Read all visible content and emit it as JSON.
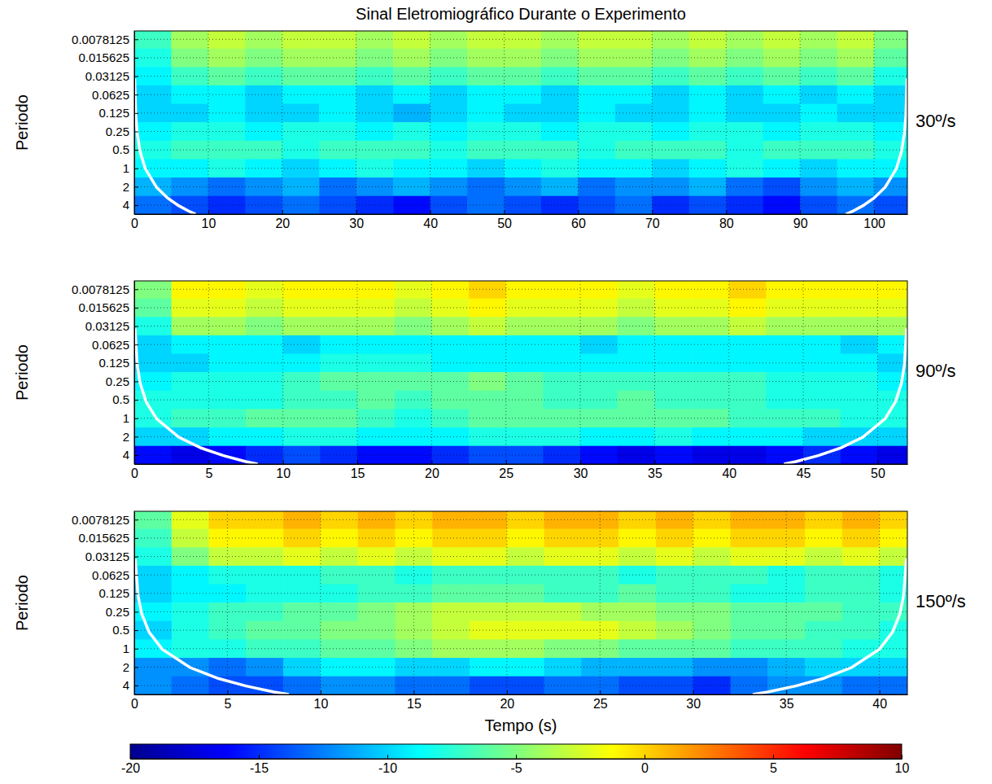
{
  "title": "Sinal Eletromiográfico Durante o Experimento",
  "colorbar": {
    "range": [
      -20,
      10
    ],
    "ticks": [
      -20,
      -15,
      -10,
      -5,
      0,
      5,
      10
    ]
  },
  "chart_data": [
    {
      "type": "heatmap",
      "label": "30º/s",
      "ylabel": "Periodo",
      "log": "y",
      "grid": true,
      "xlim": [
        0,
        104.5
      ],
      "xticks": [
        0,
        10,
        20,
        30,
        40,
        50,
        60,
        70,
        80,
        90,
        100
      ],
      "ylim": [
        0.0057,
        5.6
      ],
      "yticks": [
        0.0078125,
        0.015625,
        0.03125,
        0.0625,
        0.125,
        0.25,
        0.5,
        1,
        2,
        4
      ],
      "x": [
        2.5,
        7.5,
        12.5,
        17.5,
        22.5,
        27.5,
        32.5,
        37.5,
        42.5,
        47.5,
        52.5,
        57.5,
        62.5,
        67.5,
        72.5,
        77.5,
        82.5,
        87.5,
        92.5,
        97.5,
        102.5
      ],
      "y": [
        0.0078125,
        0.015625,
        0.03125,
        0.0625,
        0.125,
        0.25,
        0.5,
        1,
        2,
        4
      ],
      "cells": [
        [
          -7,
          -4,
          -3,
          -4,
          -3,
          -3,
          -4,
          -3,
          -4,
          -3,
          -3,
          -4,
          -3,
          -3,
          -4,
          -3,
          -4,
          -3,
          -4,
          -3,
          -5
        ],
        [
          -8,
          -5,
          -4,
          -5,
          -4,
          -4,
          -5,
          -4,
          -5,
          -4,
          -4,
          -5,
          -4,
          -4,
          -5,
          -4,
          -5,
          -4,
          -5,
          -4,
          -6
        ],
        [
          -9,
          -7,
          -6,
          -7,
          -6,
          -6,
          -7,
          -6,
          -7,
          -6,
          -6,
          -7,
          -6,
          -6,
          -7,
          -6,
          -7,
          -6,
          -7,
          -6,
          -8
        ],
        [
          -10,
          -9,
          -9,
          -10,
          -9,
          -9,
          -10,
          -9,
          -10,
          -9,
          -9,
          -10,
          -9,
          -9,
          -10,
          -9,
          -10,
          -9,
          -10,
          -9,
          -10
        ],
        [
          -10,
          -10,
          -9,
          -10,
          -10,
          -9,
          -10,
          -11,
          -10,
          -9,
          -10,
          -10,
          -9,
          -10,
          -10,
          -9,
          -10,
          -10,
          -9,
          -10,
          -10
        ],
        [
          -9,
          -8,
          -8,
          -9,
          -8,
          -8,
          -9,
          -8,
          -9,
          -8,
          -8,
          -9,
          -8,
          -8,
          -9,
          -8,
          -8,
          -9,
          -8,
          -8,
          -9
        ],
        [
          -8,
          -7,
          -7,
          -7,
          -8,
          -7,
          -7,
          -7,
          -8,
          -7,
          -7,
          -7,
          -8,
          -7,
          -7,
          -7,
          -8,
          -7,
          -7,
          -7,
          -8
        ],
        [
          -9,
          -9,
          -8,
          -9,
          -10,
          -9,
          -8,
          -9,
          -9,
          -10,
          -9,
          -8,
          -9,
          -9,
          -10,
          -9,
          -8,
          -9,
          -10,
          -9,
          -9
        ],
        [
          -11,
          -12,
          -13,
          -12,
          -11,
          -13,
          -12,
          -11,
          -12,
          -13,
          -12,
          -11,
          -13,
          -12,
          -12,
          -11,
          -13,
          -14,
          -12,
          -11,
          -12
        ],
        [
          -13,
          -14,
          -15,
          -14,
          -13,
          -14,
          -15,
          -16,
          -14,
          -13,
          -14,
          -15,
          -14,
          -13,
          -15,
          -14,
          -15,
          -16,
          -14,
          -13,
          -14
        ]
      ],
      "coi": {
        "color": "#ffffff",
        "x": [
          0.05,
          0.2,
          0.4,
          0.8,
          1.5,
          3,
          4.5,
          6,
          7.5,
          8.3,
          null,
          96.2,
          97,
          98.5,
          100,
          101.5,
          103,
          103.7,
          104.1,
          104.3,
          104.45
        ],
        "y": [
          0.034,
          0.136,
          0.27,
          0.54,
          1.02,
          2.04,
          3.06,
          4.08,
          5.1,
          5.6,
          null,
          5.6,
          5.1,
          4.08,
          3.06,
          2.04,
          1.02,
          0.54,
          0.27,
          0.136,
          0.034
        ]
      }
    },
    {
      "type": "heatmap",
      "label": "90º/s",
      "ylabel": "Periodo",
      "log": "y",
      "grid": true,
      "xlim": [
        0,
        52
      ],
      "xticks": [
        0,
        5,
        10,
        15,
        20,
        25,
        30,
        35,
        40,
        45,
        50
      ],
      "ylim": [
        0.0057,
        5.6
      ],
      "yticks": [
        0.0078125,
        0.015625,
        0.03125,
        0.0625,
        0.125,
        0.25,
        0.5,
        1,
        2,
        4
      ],
      "x": [
        1.25,
        3.75,
        6.25,
        8.75,
        11.25,
        13.75,
        16.25,
        18.75,
        21.25,
        23.75,
        26.25,
        28.75,
        31.25,
        33.75,
        36.25,
        38.75,
        41.25,
        43.75,
        46.25,
        48.75,
        51.25
      ],
      "y": [
        0.0078125,
        0.015625,
        0.03125,
        0.0625,
        0.125,
        0.25,
        0.5,
        1,
        2,
        4
      ],
      "cells": [
        [
          -5,
          -1,
          -1,
          -2,
          -1,
          -1,
          -1,
          -2,
          -1,
          0,
          -1,
          -1,
          -1,
          -2,
          -1,
          -1,
          0,
          -1,
          -1,
          -1,
          -1
        ],
        [
          -6,
          -2,
          -2,
          -3,
          -2,
          -2,
          -2,
          -3,
          -2,
          -1,
          -2,
          -2,
          -2,
          -3,
          -2,
          -2,
          -1,
          -2,
          -2,
          -2,
          -2
        ],
        [
          -8,
          -4,
          -4,
          -5,
          -4,
          -4,
          -4,
          -5,
          -4,
          -3,
          -4,
          -4,
          -4,
          -5,
          -4,
          -4,
          -3,
          -4,
          -4,
          -4,
          -4
        ],
        [
          -10,
          -9,
          -9,
          -9,
          -10,
          -9,
          -9,
          -9,
          -9,
          -9,
          -9,
          -9,
          -10,
          -9,
          -9,
          -9,
          -9,
          -9,
          -9,
          -10,
          -9
        ],
        [
          -10,
          -10,
          -9,
          -9,
          -9,
          -8,
          -8,
          -8,
          -9,
          -9,
          -9,
          -9,
          -9,
          -9,
          -9,
          -9,
          -9,
          -9,
          -9,
          -9,
          -10
        ],
        [
          -9,
          -8,
          -8,
          -8,
          -7,
          -6,
          -6,
          -6,
          -6,
          -5,
          -6,
          -7,
          -7,
          -7,
          -7,
          -7,
          -7,
          -8,
          -8,
          -8,
          -9
        ],
        [
          -8,
          -8,
          -8,
          -8,
          -7,
          -7,
          -6,
          -7,
          -6,
          -6,
          -6,
          -7,
          -7,
          -6,
          -7,
          -7,
          -7,
          -8,
          -8,
          -8,
          -8
        ],
        [
          -8,
          -7,
          -7,
          -6,
          -6,
          -6,
          -7,
          -8,
          -7,
          -6,
          -6,
          -6,
          -6,
          -6,
          -6,
          -6,
          -7,
          -7,
          -7,
          -8,
          -8
        ],
        [
          -10,
          -10,
          -9,
          -9,
          -8,
          -8,
          -9,
          -9,
          -9,
          -8,
          -8,
          -8,
          -9,
          -9,
          -8,
          -9,
          -9,
          -9,
          -10,
          -10,
          -10
        ],
        [
          -16,
          -17,
          -16,
          -15,
          -14,
          -15,
          -16,
          -16,
          -15,
          -14,
          -14,
          -15,
          -16,
          -17,
          -16,
          -17,
          -17,
          -16,
          -15,
          -16,
          -17
        ]
      ],
      "coi": {
        "color": "#ffffff",
        "x": [
          0.05,
          0.2,
          0.4,
          0.8,
          1.5,
          3,
          4.5,
          6,
          7.5,
          8.3,
          null,
          43.7,
          44.5,
          46,
          47.5,
          49,
          50.5,
          51.2,
          51.6,
          51.8,
          51.95
        ],
        "y": [
          0.034,
          0.136,
          0.27,
          0.54,
          1.02,
          2.04,
          3.06,
          4.08,
          5.1,
          5.6,
          null,
          5.6,
          5.1,
          4.08,
          3.06,
          2.04,
          1.02,
          0.54,
          0.27,
          0.136,
          0.034
        ]
      }
    },
    {
      "type": "heatmap",
      "label": "150º/s",
      "ylabel": "Periodo",
      "xlabel": "Tempo (s)",
      "log": "y",
      "grid": true,
      "xlim": [
        0,
        41.5
      ],
      "xticks": [
        0,
        5,
        10,
        15,
        20,
        25,
        30,
        35,
        40
      ],
      "ylim": [
        0.0057,
        5.6
      ],
      "yticks": [
        0.0078125,
        0.015625,
        0.03125,
        0.0625,
        0.125,
        0.25,
        0.5,
        1,
        2,
        4
      ],
      "x": [
        1,
        3,
        5,
        7,
        9,
        11,
        13,
        15,
        17,
        19,
        21,
        23,
        25,
        27,
        29,
        31,
        33,
        35,
        37,
        39,
        41
      ],
      "y": [
        0.0078125,
        0.015625,
        0.03125,
        0.0625,
        0.125,
        0.25,
        0.5,
        1,
        2,
        4
      ],
      "cells": [
        [
          -6,
          -2,
          0,
          0,
          1,
          0,
          1,
          0,
          1,
          1,
          0,
          1,
          1,
          0,
          1,
          0,
          1,
          1,
          0,
          1,
          0
        ],
        [
          -7,
          -3,
          -1,
          -1,
          0,
          -1,
          0,
          -1,
          0,
          0,
          -1,
          0,
          0,
          -1,
          0,
          -1,
          0,
          0,
          -1,
          0,
          -1
        ],
        [
          -8,
          -5,
          -3,
          -3,
          -2,
          -3,
          -2,
          -3,
          -2,
          -2,
          -3,
          -2,
          -2,
          -3,
          -2,
          -3,
          -2,
          -2,
          -3,
          -2,
          -3
        ],
        [
          -10,
          -9,
          -8,
          -8,
          -8,
          -7,
          -7,
          -8,
          -7,
          -7,
          -7,
          -7,
          -7,
          -8,
          -7,
          -7,
          -7,
          -8,
          -7,
          -7,
          -8
        ],
        [
          -10,
          -9,
          -9,
          -8,
          -8,
          -8,
          -7,
          -7,
          -6,
          -6,
          -6,
          -7,
          -7,
          -6,
          -7,
          -7,
          -8,
          -8,
          -7,
          -7,
          -8
        ],
        [
          -9,
          -8,
          -7,
          -7,
          -6,
          -6,
          -5,
          -4,
          -3,
          -3,
          -3,
          -3,
          -4,
          -4,
          -5,
          -5,
          -6,
          -6,
          -6,
          -7,
          -7
        ],
        [
          -10,
          -8,
          -7,
          -6,
          -6,
          -5,
          -5,
          -4,
          -3,
          -2,
          -2,
          -2,
          -2,
          -3,
          -4,
          -5,
          -6,
          -6,
          -7,
          -7,
          -8
        ],
        [
          -9,
          -8,
          -8,
          -7,
          -7,
          -6,
          -6,
          -5,
          -4,
          -4,
          -4,
          -5,
          -5,
          -6,
          -6,
          -6,
          -7,
          -7,
          -7,
          -8,
          -8
        ],
        [
          -12,
          -12,
          -13,
          -12,
          -10,
          -9,
          -9,
          -10,
          -10,
          -9,
          -9,
          -10,
          -11,
          -11,
          -11,
          -12,
          -12,
          -11,
          -10,
          -10,
          -10
        ],
        [
          -12,
          -13,
          -14,
          -14,
          -13,
          -12,
          -12,
          -13,
          -13,
          -14,
          -14,
          -13,
          -13,
          -14,
          -14,
          -15,
          -13,
          -12,
          -12,
          -13,
          -13
        ]
      ],
      "coi": {
        "color": "#ffffff",
        "x": [
          0.05,
          0.2,
          0.4,
          0.8,
          1.5,
          3,
          4.5,
          6,
          7.5,
          8.3,
          null,
          33.2,
          34,
          35.5,
          37,
          38.5,
          40,
          40.7,
          41.1,
          41.3,
          41.45
        ],
        "y": [
          0.034,
          0.136,
          0.27,
          0.54,
          1.02,
          2.04,
          3.06,
          4.08,
          5.1,
          5.6,
          null,
          5.6,
          5.1,
          4.08,
          3.06,
          2.04,
          1.02,
          0.54,
          0.27,
          0.136,
          0.034
        ]
      }
    }
  ]
}
